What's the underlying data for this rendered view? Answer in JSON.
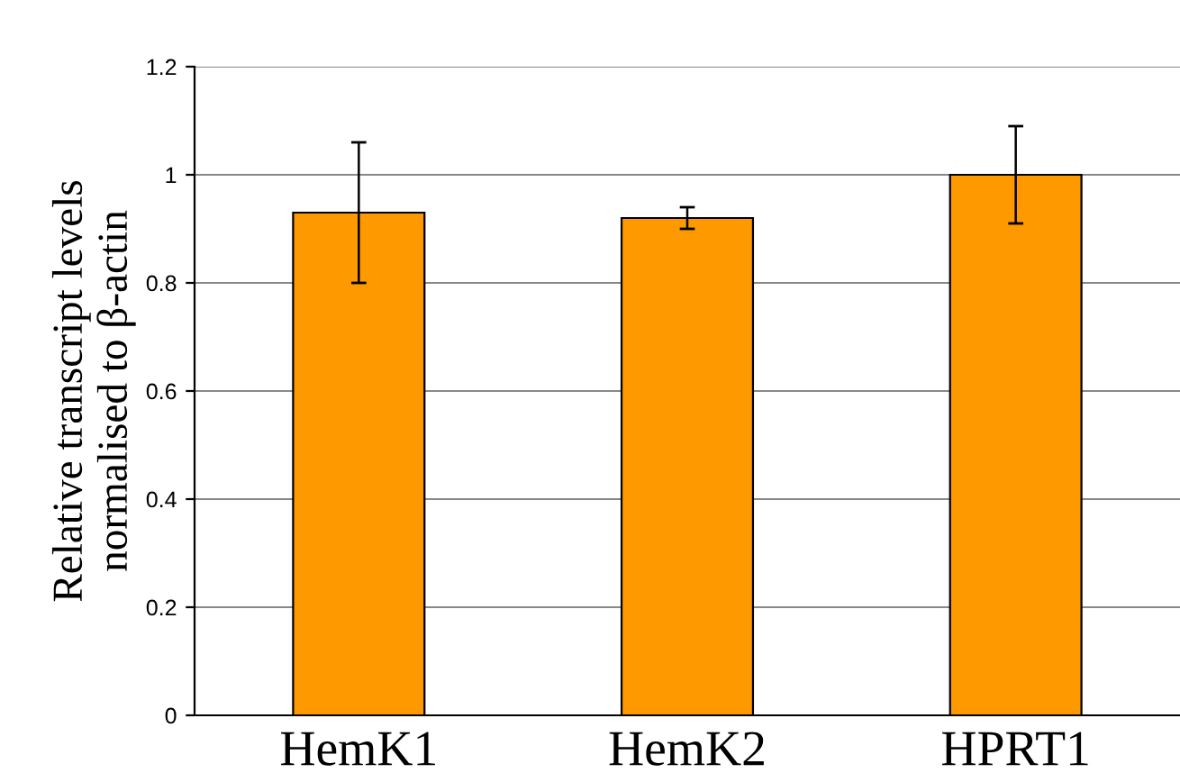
{
  "chart_data": {
    "type": "bar",
    "ylabel": "Relative transcript levels\nnormalised to β-actin",
    "categories": [
      "HemK1",
      "HemK2",
      "HPRT1"
    ],
    "values": [
      0.93,
      0.92,
      1.0
    ],
    "errors": [
      [
        0.8,
        1.06
      ],
      [
        0.9,
        0.94
      ],
      [
        0.91,
        1.09
      ]
    ],
    "color": "#ff9900",
    "ylim": [
      0,
      1.2
    ],
    "yticks": [
      0,
      {
        "value": 0.2,
        "label": "0.2"
      },
      {
        "value": 0.4,
        "label": "0.4"
      },
      {
        "value": 0.6,
        "label": "0.6"
      },
      {
        "value": 0.8,
        "label": "0.8"
      },
      1,
      {
        "value": 1.2,
        "label": "1.2"
      }
    ],
    "grid": "y"
  }
}
